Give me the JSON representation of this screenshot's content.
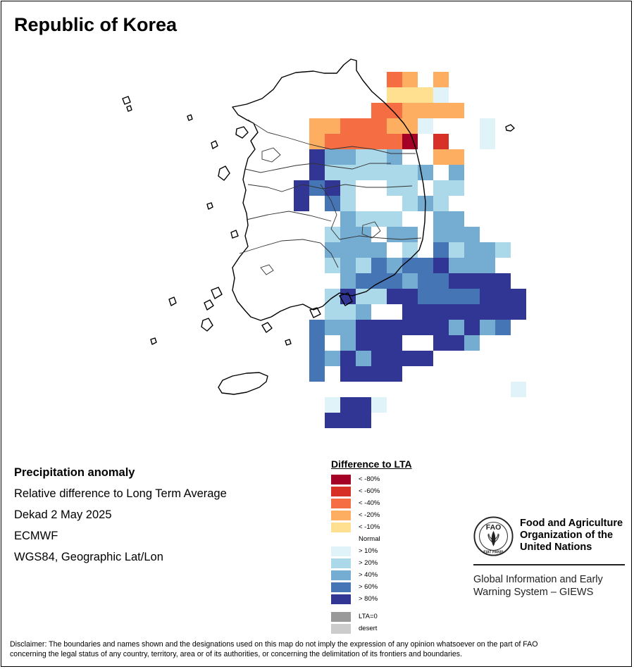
{
  "header": {
    "title": "Republic of Korea"
  },
  "info": {
    "line1": "Precipitation anomaly",
    "line2": "Relative difference to Long Term Average",
    "line3": "Dekad 2 May 2025",
    "line4": "ECMWF",
    "line5": "WGS84, Geographic Lat/Lon"
  },
  "legend": {
    "title": "Difference to LTA",
    "classes": [
      {
        "label": "< -80%",
        "color": "#a50026"
      },
      {
        "label": "< -60%",
        "color": "#d73027"
      },
      {
        "label": "< -40%",
        "color": "#f46d43"
      },
      {
        "label": "< -20%",
        "color": "#fdae61"
      },
      {
        "label": "< -10%",
        "color": "#fee090"
      },
      {
        "label": "Normal",
        "color": "#ffffff"
      },
      {
        "label": "> 10%",
        "color": "#e0f3f8"
      },
      {
        "label": "> 20%",
        "color": "#abd9e9"
      },
      {
        "label": "> 40%",
        "color": "#74add1"
      },
      {
        "label": "> 60%",
        "color": "#4575b4"
      },
      {
        "label": "> 80%",
        "color": "#313695"
      }
    ],
    "extra": [
      {
        "label": "LTA=0",
        "color": "#999999"
      },
      {
        "label": "desert",
        "color": "#cccccc"
      }
    ]
  },
  "org": {
    "name_line1": "Food and Agriculture",
    "name_line2": "Organization of the",
    "name_line3": "United Nations",
    "logo_letters": "FAO",
    "logo_motto": "FIAT PANIS",
    "system_line1": "Global Information and Early",
    "system_line2": "Warning System – GIEWS"
  },
  "disclaimer": {
    "line1": "Disclaimer: The boundaries and names shown and the designations used on this map do not imply the expression of any opinion whatsoever on the part of FAO",
    "line2": "concerning the legal status of any country, territory, area or of its authorities, or concerning the delimitation of its frontiers and boundaries."
  },
  "map": {
    "grid": {
      "origin_lon": 125.0,
      "origin_lat": 38.75,
      "cell_deg": 0.25,
      "rows": [
        "...........34.4............",
        "...........5556............",
        "..........334444...........",
        "......44333446...6.........",
        "......4333331.2..6.........",
        "......b99889..44...........",
        "......b8877889.9..........",
        ".....bab7..88.87...........",
        ".....b.a8...898............",
        "........9778..99...........",
        ".......899.99.999..........",
        ".......9999.8.a8998........",
        ".......898a9aab999.........",
        "........9aaa9aabbbb........",
        ".......8b88bbaaaabbb.......",
        ".......889..bbbbbbbb.......",
        "......a99bbbbbb9b9a........",
        "......a.9bbb..bb9..........",
        "......a9b9bbbb.............",
        "......a.bbbb...............",
        "...................6.......",
        ".......6bb6.................",
        ".......bbb.................."
      ]
    }
  }
}
